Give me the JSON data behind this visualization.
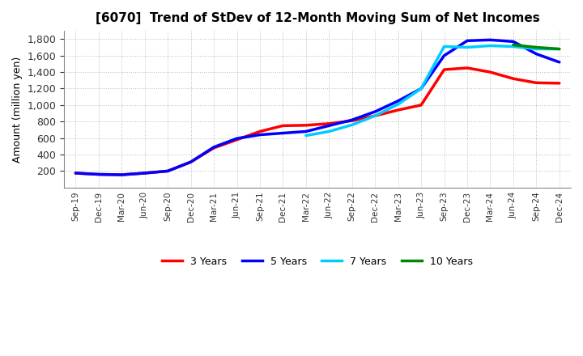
{
  "title": "[6070]  Trend of StDev of 12-Month Moving Sum of Net Incomes",
  "ylabel": "Amount (million yen)",
  "background_color": "#ffffff",
  "grid_color": "#aaaaaa",
  "ylim": [
    0,
    1900
  ],
  "yticks": [
    200,
    400,
    600,
    800,
    1000,
    1200,
    1400,
    1600,
    1800
  ],
  "x_labels": [
    "Sep-19",
    "Dec-19",
    "Mar-20",
    "Jun-20",
    "Sep-20",
    "Dec-20",
    "Mar-21",
    "Jun-21",
    "Sep-21",
    "Dec-21",
    "Mar-22",
    "Jun-22",
    "Sep-22",
    "Dec-22",
    "Mar-23",
    "Jun-23",
    "Sep-23",
    "Dec-23",
    "Mar-24",
    "Jun-24",
    "Sep-24",
    "Dec-24"
  ],
  "series": {
    "3 Years": {
      "color": "#ff0000",
      "data_indices": [
        0,
        1,
        2,
        3,
        4,
        5,
        6,
        7,
        8,
        9,
        10,
        11,
        12,
        13,
        14,
        15,
        16,
        17,
        18,
        19,
        20,
        21
      ],
      "values": [
        175,
        160,
        155,
        175,
        200,
        310,
        480,
        580,
        680,
        750,
        755,
        775,
        810,
        870,
        940,
        1000,
        1430,
        1450,
        1400,
        1320,
        1270,
        1265
      ]
    },
    "5 Years": {
      "color": "#0000ff",
      "data_indices": [
        0,
        1,
        2,
        3,
        4,
        5,
        6,
        7,
        8,
        9,
        10,
        11,
        12,
        13,
        14,
        15,
        16,
        17,
        18,
        19,
        20,
        21
      ],
      "values": [
        175,
        160,
        155,
        175,
        200,
        310,
        490,
        595,
        640,
        660,
        680,
        750,
        820,
        920,
        1050,
        1200,
        1600,
        1780,
        1790,
        1770,
        1620,
        1520
      ]
    },
    "7 Years": {
      "color": "#00ccff",
      "data_indices": [
        10,
        11,
        12,
        13,
        14,
        15,
        16,
        17,
        18,
        19,
        20,
        21
      ],
      "values": [
        630,
        680,
        760,
        870,
        1010,
        1200,
        1710,
        1700,
        1720,
        1710,
        1680,
        1680
      ]
    },
    "10 Years": {
      "color": "#008800",
      "data_indices": [
        19,
        20,
        21
      ],
      "values": [
        1730,
        1700,
        1680
      ]
    }
  },
  "legend": {
    "labels": [
      "3 Years",
      "5 Years",
      "7 Years",
      "10 Years"
    ],
    "colors": [
      "#ff0000",
      "#0000ff",
      "#00ccff",
      "#008800"
    ]
  }
}
